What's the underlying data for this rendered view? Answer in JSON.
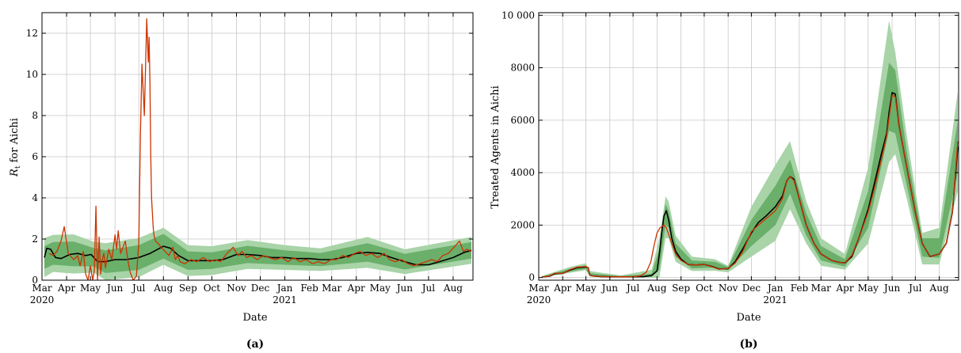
{
  "panels": [
    {
      "caption": "(a)",
      "ylabel_var": "R",
      "ylabel_sub": "t",
      "ylabel_rest": " for Aichi",
      "xlabel": "Date"
    },
    {
      "caption": "(b)",
      "ylabel": "Treated Agents in Aichi",
      "xlabel": "Date"
    }
  ],
  "chart_data": [
    {
      "type": "line",
      "title": "",
      "xlabel": "Date",
      "ylabel": "R_t for Aichi",
      "xlim": [
        "2020-03-01",
        "2021-08-26"
      ],
      "ylim": [
        0,
        13
      ],
      "yticks": [
        0,
        2,
        4,
        6,
        8,
        10,
        12
      ],
      "xtick_labels": [
        "Mar",
        "Apr",
        "May",
        "Jun",
        "Jul",
        "Aug",
        "Sep",
        "Oct",
        "Nov",
        "Dec",
        "Jan",
        "Feb",
        "Mar",
        "Apr",
        "May",
        "Jun",
        "Jul",
        "Aug"
      ],
      "year_labels": [
        "2020",
        "2021"
      ],
      "grid": true,
      "colors": {
        "median": "#000000",
        "observed": "#cc3300",
        "band_inner": "#5fa85f",
        "band_outer": "#a8d4a8"
      },
      "series": [
        {
          "role": "median",
          "x": [
            "2020-03-04",
            "2020-03-07",
            "2020-03-12",
            "2020-03-18",
            "2020-03-25",
            "2020-04-05",
            "2020-04-15",
            "2020-04-25",
            "2020-05-02",
            "2020-05-10",
            "2020-05-20",
            "2020-06-01",
            "2020-06-15",
            "2020-07-01",
            "2020-07-15",
            "2020-08-01",
            "2020-08-10",
            "2020-08-20",
            "2020-09-01",
            "2020-09-15",
            "2020-10-01",
            "2020-10-15",
            "2020-11-01",
            "2020-11-15",
            "2020-12-01",
            "2020-12-15",
            "2021-01-01",
            "2021-01-15",
            "2021-02-01",
            "2021-02-15",
            "2021-03-01",
            "2021-03-15",
            "2021-04-01",
            "2021-04-15",
            "2021-05-01",
            "2021-05-15",
            "2021-06-01",
            "2021-06-15",
            "2021-07-01",
            "2021-07-15",
            "2021-08-01",
            "2021-08-15",
            "2021-08-24"
          ],
          "y": [
            1.1,
            1.55,
            1.5,
            1.1,
            1.05,
            1.25,
            1.3,
            1.2,
            1.25,
            0.9,
            0.9,
            1.0,
            1.0,
            1.1,
            1.3,
            1.65,
            1.55,
            1.2,
            0.95,
            0.95,
            0.95,
            1.0,
            1.25,
            1.25,
            1.2,
            1.1,
            1.1,
            1.05,
            1.05,
            1.0,
            1.0,
            1.1,
            1.3,
            1.35,
            1.3,
            1.1,
            0.9,
            0.75,
            0.75,
            0.9,
            1.1,
            1.35,
            1.45
          ]
        },
        {
          "role": "observed",
          "x": [
            "2020-03-10",
            "2020-03-15",
            "2020-03-20",
            "2020-03-25",
            "2020-03-29",
            "2020-04-03",
            "2020-04-10",
            "2020-04-15",
            "2020-04-18",
            "2020-04-22",
            "2020-04-25",
            "2020-04-28",
            "2020-05-01",
            "2020-05-04",
            "2020-05-06",
            "2020-05-08",
            "2020-05-10",
            "2020-05-12",
            "2020-05-14",
            "2020-05-16",
            "2020-05-18",
            "2020-05-20",
            "2020-05-24",
            "2020-05-28",
            "2020-06-01",
            "2020-06-03",
            "2020-06-05",
            "2020-06-08",
            "2020-06-11",
            "2020-06-14",
            "2020-06-17",
            "2020-06-20",
            "2020-06-24",
            "2020-06-28",
            "2020-07-01",
            "2020-07-03",
            "2020-07-05",
            "2020-07-08",
            "2020-07-11",
            "2020-07-13",
            "2020-07-14",
            "2020-07-15",
            "2020-07-16",
            "2020-07-17",
            "2020-07-18",
            "2020-07-19",
            "2020-07-20",
            "2020-07-22",
            "2020-07-25",
            "2020-07-29",
            "2020-08-03",
            "2020-08-08",
            "2020-08-13",
            "2020-08-16",
            "2020-08-19",
            "2020-08-22",
            "2020-08-28",
            "2020-09-05",
            "2020-09-12",
            "2020-09-20",
            "2020-09-28",
            "2020-10-05",
            "2020-10-12",
            "2020-10-20",
            "2020-10-28",
            "2020-11-03",
            "2020-11-08",
            "2020-11-14",
            "2020-11-20",
            "2020-11-27",
            "2020-12-05",
            "2020-12-12",
            "2020-12-20",
            "2020-12-28",
            "2021-01-05",
            "2021-01-12",
            "2021-01-20",
            "2021-01-28",
            "2021-02-05",
            "2021-02-12",
            "2021-02-20",
            "2021-02-28",
            "2021-03-07",
            "2021-03-15",
            "2021-03-22",
            "2021-03-30",
            "2021-04-06",
            "2021-04-13",
            "2021-04-20",
            "2021-04-28",
            "2021-05-06",
            "2021-05-13",
            "2021-05-20",
            "2021-05-28",
            "2021-06-05",
            "2021-06-12",
            "2021-06-20",
            "2021-06-28",
            "2021-07-05",
            "2021-07-12",
            "2021-07-19",
            "2021-07-26",
            "2021-08-02",
            "2021-08-09",
            "2021-08-14",
            "2021-08-18",
            "2021-08-24"
          ],
          "y": [
            1.3,
            1.2,
            1.4,
            1.9,
            2.6,
            1.3,
            1.0,
            1.2,
            0.7,
            1.4,
            0.3,
            0.0,
            0.7,
            0.0,
            0.5,
            3.6,
            0.0,
            2.1,
            0.3,
            1.0,
            1.3,
            0.6,
            1.5,
            1.0,
            2.2,
            1.5,
            2.4,
            1.3,
            1.6,
            1.9,
            1.0,
            0.4,
            0.0,
            0.2,
            1.8,
            7.0,
            10.5,
            8.0,
            12.7,
            10.6,
            11.8,
            9.5,
            6.0,
            4.0,
            3.3,
            2.6,
            2.2,
            1.9,
            1.8,
            1.6,
            1.4,
            1.2,
            1.6,
            1.0,
            1.2,
            0.9,
            0.8,
            1.0,
            0.9,
            1.1,
            0.9,
            1.0,
            0.9,
            1.3,
            1.6,
            1.2,
            1.4,
            1.1,
            1.2,
            1.0,
            1.2,
            1.1,
            1.0,
            1.1,
            0.9,
            1.1,
            0.9,
            1.0,
            0.8,
            0.9,
            0.8,
            1.0,
            1.0,
            1.2,
            1.1,
            1.3,
            1.4,
            1.2,
            1.3,
            1.1,
            1.3,
            1.0,
            0.9,
            1.0,
            0.8,
            0.7,
            0.8,
            0.9,
            1.0,
            0.9,
            1.2,
            1.3,
            1.6,
            1.9,
            1.4,
            1.5,
            1.4
          ]
        }
      ]
    },
    {
      "type": "line",
      "title": "",
      "xlabel": "Date",
      "ylabel": "Treated Agents in Aichi",
      "xlim": [
        "2020-03-01",
        "2021-08-26"
      ],
      "ylim": [
        -100,
        10100
      ],
      "yticks": [
        0,
        2000,
        4000,
        6000,
        8000,
        10000
      ],
      "ytick_labels": [
        "0",
        "2000",
        "4000",
        "6000",
        "8000",
        "10 000"
      ],
      "xtick_labels": [
        "Mar",
        "Apr",
        "May",
        "Jun",
        "Jul",
        "Aug",
        "Sep",
        "Oct",
        "Nov",
        "Dec",
        "Jan",
        "Feb",
        "Mar",
        "Apr",
        "May",
        "Jun",
        "Jul",
        "Aug"
      ],
      "year_labels": [
        "2020",
        "2021"
      ],
      "grid": true,
      "colors": {
        "median": "#000000",
        "observed": "#cc3300",
        "band_inner": "#5fa85f",
        "band_outer": "#a8d4a8"
      },
      "series": [
        {
          "role": "median",
          "x": [
            "2020-03-05",
            "2020-03-15",
            "2020-03-22",
            "2020-04-01",
            "2020-04-10",
            "2020-04-20",
            "2020-05-01",
            "2020-05-04",
            "2020-05-06",
            "2020-05-10",
            "2020-05-20",
            "2020-06-01",
            "2020-06-15",
            "2020-07-01",
            "2020-07-15",
            "2020-07-25",
            "2020-08-01",
            "2020-08-04",
            "2020-08-07",
            "2020-08-10",
            "2020-08-13",
            "2020-08-16",
            "2020-08-20",
            "2020-08-25",
            "2020-09-01",
            "2020-09-10",
            "2020-09-20",
            "2020-10-01",
            "2020-10-10",
            "2020-10-20",
            "2020-11-01",
            "2020-11-10",
            "2020-11-20",
            "2020-12-01",
            "2020-12-10",
            "2020-12-20",
            "2021-01-01",
            "2021-01-10",
            "2021-01-16",
            "2021-01-20",
            "2021-01-25",
            "2021-02-01",
            "2021-02-10",
            "2021-02-20",
            "2021-03-01",
            "2021-03-15",
            "2021-03-25",
            "2021-04-01",
            "2021-04-10",
            "2021-04-20",
            "2021-05-01",
            "2021-05-10",
            "2021-05-18",
            "2021-05-25",
            "2021-05-28",
            "2021-06-01",
            "2021-06-05",
            "2021-06-10",
            "2021-06-20",
            "2021-07-01",
            "2021-07-10",
            "2021-07-20",
            "2021-08-01",
            "2021-08-10",
            "2021-08-18",
            "2021-08-25"
          ],
          "y": [
            20,
            50,
            150,
            160,
            280,
            380,
            400,
            380,
            100,
            60,
            40,
            30,
            30,
            30,
            40,
            80,
            250,
            900,
            1700,
            2350,
            2550,
            2200,
            1500,
            1000,
            700,
            500,
            480,
            500,
            430,
            330,
            340,
            600,
            1100,
            1700,
            2100,
            2350,
            2700,
            3100,
            3700,
            3850,
            3750,
            3000,
            2000,
            1300,
            900,
            650,
            580,
            560,
            800,
            1600,
            2600,
            3700,
            4700,
            5500,
            6300,
            7050,
            7000,
            5800,
            4200,
            2500,
            1300,
            800,
            900,
            1300,
            2500,
            5000
          ]
        },
        {
          "role": "observed",
          "x": [
            "2020-03-05",
            "2020-03-15",
            "2020-03-22",
            "2020-04-01",
            "2020-04-10",
            "2020-04-20",
            "2020-05-01",
            "2020-05-04",
            "2020-05-06",
            "2020-05-10",
            "2020-05-20",
            "2020-06-01",
            "2020-06-15",
            "2020-07-01",
            "2020-07-10",
            "2020-07-18",
            "2020-07-24",
            "2020-07-28",
            "2020-08-01",
            "2020-08-05",
            "2020-08-10",
            "2020-08-13",
            "2020-08-16",
            "2020-08-20",
            "2020-08-25",
            "2020-09-01",
            "2020-09-10",
            "2020-09-20",
            "2020-10-01",
            "2020-10-10",
            "2020-10-20",
            "2020-11-01",
            "2020-11-10",
            "2020-11-20",
            "2020-12-01",
            "2020-12-10",
            "2020-12-20",
            "2021-01-01",
            "2021-01-10",
            "2021-01-16",
            "2021-01-20",
            "2021-01-25",
            "2021-02-01",
            "2021-02-10",
            "2021-02-20",
            "2021-03-01",
            "2021-03-15",
            "2021-03-25",
            "2021-04-01",
            "2021-04-10",
            "2021-04-20",
            "2021-05-01",
            "2021-05-10",
            "2021-05-18",
            "2021-05-25",
            "2021-05-28",
            "2021-06-01",
            "2021-06-05",
            "2021-06-10",
            "2021-06-20",
            "2021-07-01",
            "2021-07-10",
            "2021-07-20",
            "2021-08-01",
            "2021-08-10",
            "2021-08-18",
            "2021-08-25"
          ],
          "y": [
            20,
            60,
            170,
            150,
            300,
            400,
            420,
            380,
            100,
            60,
            40,
            30,
            30,
            30,
            60,
            200,
            600,
            1200,
            1700,
            1900,
            2000,
            1900,
            1650,
            1300,
            900,
            650,
            500,
            480,
            500,
            420,
            320,
            350,
            550,
            1000,
            1750,
            2000,
            2250,
            2550,
            3000,
            3700,
            3850,
            3700,
            3000,
            2000,
            1300,
            900,
            650,
            580,
            560,
            850,
            1600,
            2500,
            3500,
            4500,
            5400,
            6100,
            6950,
            6900,
            5800,
            4200,
            2500,
            1300,
            800,
            900,
            1300,
            2500,
            5200
          ]
        },
        {
          "role": "band_outer_upper",
          "x": [
            "2020-03-05",
            "2020-04-10",
            "2020-05-01",
            "2020-05-06",
            "2020-06-15",
            "2020-07-25",
            "2020-08-04",
            "2020-08-12",
            "2020-08-16",
            "2020-08-25",
            "2020-09-15",
            "2020-10-15",
            "2020-11-01",
            "2020-12-01",
            "2021-01-01",
            "2021-01-20",
            "2021-02-10",
            "2021-03-01",
            "2021-04-01",
            "2021-05-01",
            "2021-05-28",
            "2021-06-05",
            "2021-06-20",
            "2021-07-10",
            "2021-08-01",
            "2021-08-25"
          ],
          "y": [
            60,
            400,
            550,
            250,
            80,
            300,
            1500,
            3100,
            2900,
            1600,
            800,
            700,
            450,
            2700,
            4300,
            5200,
            2900,
            1500,
            900,
            4200,
            9800,
            8600,
            5400,
            1700,
            1900,
            7100
          ]
        },
        {
          "role": "band_outer_lower",
          "x": [
            "2020-03-05",
            "2020-04-10",
            "2020-05-01",
            "2020-05-06",
            "2020-06-15",
            "2020-07-25",
            "2020-08-04",
            "2020-08-12",
            "2020-08-16",
            "2020-08-25",
            "2020-09-15",
            "2020-10-15",
            "2020-11-01",
            "2020-12-01",
            "2021-01-01",
            "2021-01-20",
            "2021-02-10",
            "2021-03-01",
            "2021-04-01",
            "2021-05-01",
            "2021-05-28",
            "2021-06-05",
            "2021-06-20",
            "2021-07-10",
            "2021-08-01",
            "2021-08-25"
          ],
          "y": [
            0,
            180,
            280,
            40,
            0,
            0,
            0,
            1500,
            1500,
            600,
            250,
            260,
            200,
            800,
            1400,
            2600,
            1300,
            450,
            300,
            1300,
            4400,
            4700,
            3000,
            500,
            500,
            3300
          ]
        },
        {
          "role": "band_inner_upper",
          "x": [
            "2020-03-05",
            "2020-04-10",
            "2020-05-01",
            "2020-05-06",
            "2020-06-15",
            "2020-07-25",
            "2020-08-04",
            "2020-08-12",
            "2020-08-16",
            "2020-08-25",
            "2020-09-15",
            "2020-10-15",
            "2020-11-01",
            "2020-12-01",
            "2021-01-01",
            "2021-01-20",
            "2021-02-10",
            "2021-03-01",
            "2021-04-01",
            "2021-05-01",
            "2021-05-28",
            "2021-06-05",
            "2021-06-20",
            "2021-07-10",
            "2021-08-01",
            "2021-08-25"
          ],
          "y": [
            40,
            330,
            460,
            170,
            50,
            150,
            1100,
            2800,
            2550,
            1300,
            650,
            600,
            400,
            2200,
            3500,
            4500,
            2450,
            1200,
            700,
            3300,
            8200,
            7900,
            4800,
            1500,
            1500,
            6000
          ]
        },
        {
          "role": "band_inner_lower",
          "x": [
            "2020-03-05",
            "2020-04-10",
            "2020-05-01",
            "2020-05-06",
            "2020-06-15",
            "2020-07-25",
            "2020-08-04",
            "2020-08-12",
            "2020-08-16",
            "2020-08-25",
            "2020-09-15",
            "2020-10-15",
            "2020-11-01",
            "2020-12-01",
            "2021-01-01",
            "2021-01-20",
            "2021-02-10",
            "2021-03-01",
            "2021-04-01",
            "2021-05-01",
            "2021-05-28",
            "2021-06-05",
            "2021-06-20",
            "2021-07-10",
            "2021-08-01",
            "2021-08-25"
          ],
          "y": [
            10,
            230,
            330,
            70,
            10,
            20,
            300,
            2000,
            1900,
            800,
            350,
            380,
            280,
            1200,
            2000,
            3200,
            1600,
            650,
            420,
            1900,
            5600,
            5500,
            3500,
            800,
            750,
            4000
          ]
        }
      ]
    }
  ]
}
